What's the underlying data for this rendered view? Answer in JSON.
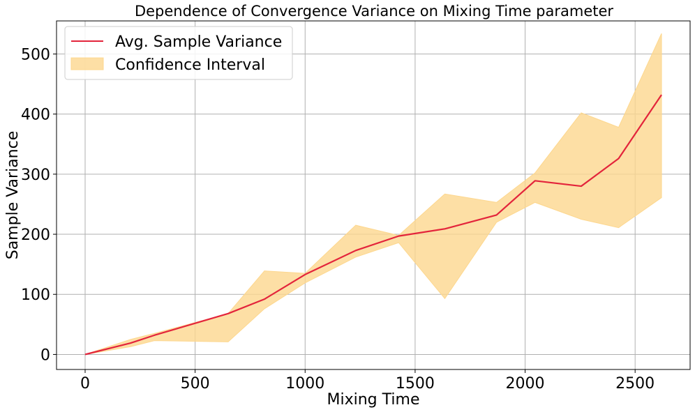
{
  "chart_data": {
    "type": "line",
    "title": "Dependence of Convergence Variance on Mixing Time parameter",
    "xlabel": "Mixing Time",
    "ylabel": "Sample Variance",
    "xlim": [
      -130,
      2750
    ],
    "ylim": [
      -25,
      555
    ],
    "xticks": [
      0,
      500,
      1000,
      1500,
      2000,
      2500
    ],
    "yticks": [
      0,
      100,
      200,
      300,
      400,
      500
    ],
    "grid": true,
    "legend_position": "top-left",
    "series": [
      {
        "name": "Avg. Sample Variance",
        "kind": "line",
        "color": "#e3243b",
        "x": [
          0,
          207,
          315,
          650,
          815,
          1000,
          1230,
          1425,
          1635,
          1870,
          2045,
          2255,
          2425,
          2620
        ],
        "values": [
          0,
          19,
          32,
          68,
          92,
          133,
          173,
          197,
          209,
          232,
          289,
          280,
          326,
          432
        ]
      },
      {
        "name": "Confidence Interval",
        "kind": "band",
        "color": "#fdd78e",
        "x": [
          0,
          207,
          315,
          650,
          815,
          1000,
          1230,
          1425,
          1635,
          1870,
          2045,
          2255,
          2425,
          2620
        ],
        "lower": [
          0,
          13,
          23,
          21,
          76,
          119,
          162,
          186,
          93,
          220,
          253,
          225,
          211,
          261
        ],
        "upper": [
          0,
          25,
          35,
          68,
          139,
          135,
          215,
          198,
          267,
          253,
          302,
          402,
          378,
          534
        ]
      }
    ]
  }
}
